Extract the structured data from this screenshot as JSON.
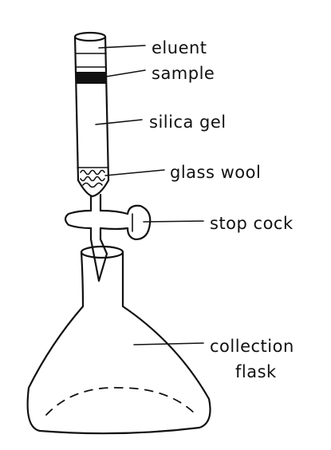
{
  "labels": {
    "eluent": "eluent",
    "sample": "sample",
    "silica_gel": "silica gel",
    "glass_wool": "glass wool",
    "stop_cock": "stop cock",
    "collection_line1": "collection",
    "collection_line2": "flask"
  },
  "colors": {
    "ink": "#111111",
    "background": "#ffffff"
  }
}
